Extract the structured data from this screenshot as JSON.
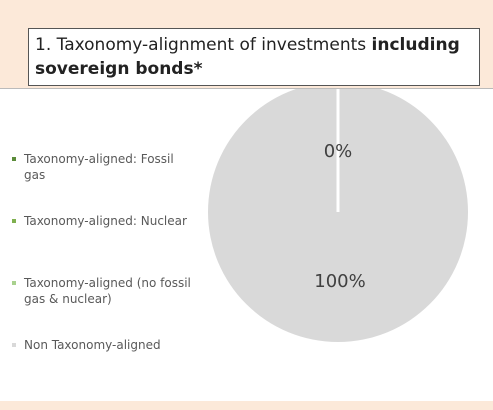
{
  "chart_data": {
    "type": "pie",
    "title": "1. Taxonomy-alignment of investments",
    "title_bold": "including sovereign bonds*",
    "categories": [
      "Taxonomy-aligned: Fossil gas",
      "Taxonomy-aligned: Nuclear",
      "Taxonomy-aligned (no fossil gas & nuclear)",
      "Non Taxonomy-aligned"
    ],
    "values": [
      0,
      0,
      0,
      100
    ],
    "value_labels": [
      null,
      null,
      "0%",
      "100%"
    ],
    "colors": [
      "#5b8c3a",
      "#7fb04f",
      "#a9d18e",
      "#d9d9d9"
    ],
    "legend": "left"
  }
}
